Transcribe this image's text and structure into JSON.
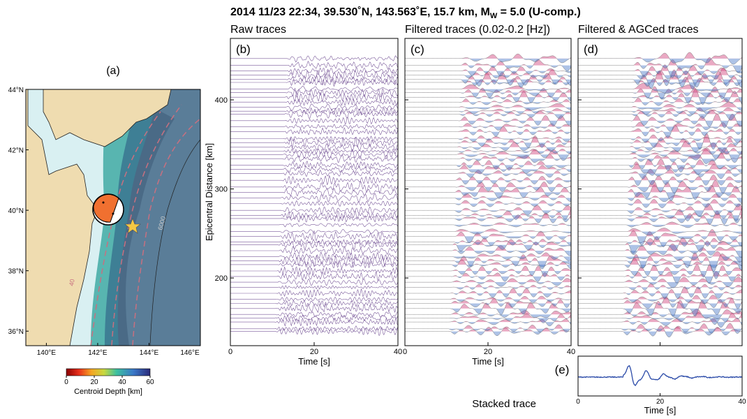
{
  "title": {
    "main": "2014 11/23 22:34, 39.530˚N, 143.563˚E, 15.7 km, M",
    "sub": "W",
    "end": " = 5.0 (U-comp.)"
  },
  "map": {
    "label": "(a)",
    "lonlim": [
      139.2,
      146
    ],
    "latlim": [
      35.52,
      44.0
    ],
    "xticks": [
      {
        "value": 140,
        "label": "140°E"
      },
      {
        "value": 142,
        "label": "142°E"
      },
      {
        "value": 144,
        "label": "144°E"
      },
      {
        "value": 146,
        "label": "146°E"
      }
    ],
    "yticks": [
      {
        "value": 36,
        "label": "36°N"
      },
      {
        "value": 38,
        "label": "38°N"
      },
      {
        "value": 40,
        "label": "40°N"
      },
      {
        "value": 42,
        "label": "42°N"
      },
      {
        "value": 44,
        "label": "44°N"
      }
    ],
    "contour_labels": [
      "6000",
      "40"
    ],
    "colorbar": {
      "lim": [
        0,
        60
      ],
      "ticks": [
        0,
        20,
        40,
        60
      ],
      "label": "Centroid Depth [km]"
    }
  },
  "panels": [
    {
      "label": "(b)",
      "heading": "Raw traces"
    },
    {
      "label": "(c)",
      "heading": "Filtered traces (0.02-0.2 [Hz])"
    },
    {
      "label": "(d)",
      "heading": "Filtered & AGCed traces"
    }
  ],
  "y_axis": {
    "label": "Epicentral Distance [km]",
    "lim": [
      124,
      469
    ],
    "ticks": [
      200,
      300,
      400
    ]
  },
  "x_axis": {
    "label": "Time [s]",
    "lim": [
      0,
      40
    ],
    "ticks": [
      0,
      20,
      40
    ]
  },
  "stacked": {
    "label": "(e)",
    "caption": "Stacked trace",
    "xlabel": "Time [s]",
    "xticks": [
      0,
      20,
      40
    ]
  }
}
